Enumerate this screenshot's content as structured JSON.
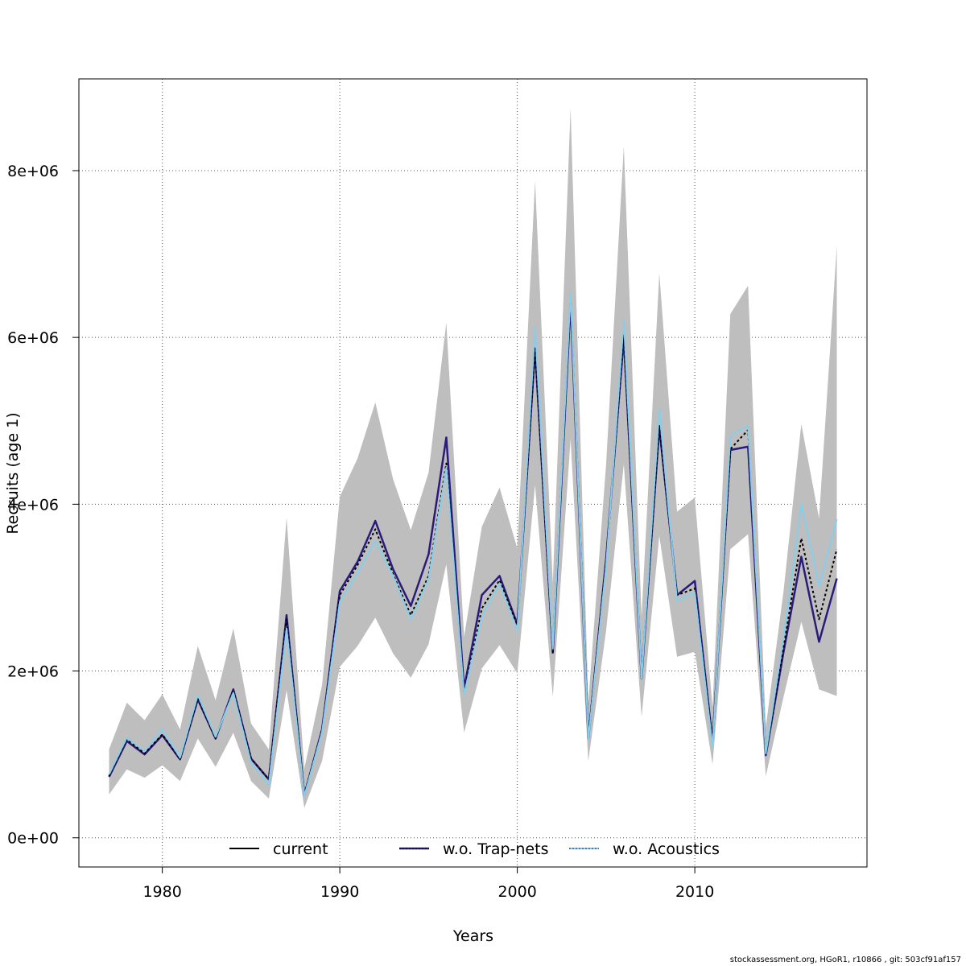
{
  "chart_data": {
    "type": "line",
    "title": "",
    "xlabel": "Years",
    "ylabel": "Recruits (age 1)",
    "xlim": [
      1975.3,
      2019.7
    ],
    "ylim": [
      -350000,
      9100000
    ],
    "x_ticks": [
      1980,
      1990,
      2000,
      2010
    ],
    "x_tick_labels": [
      "1980",
      "1990",
      "2000",
      "2010"
    ],
    "y_ticks": [
      0,
      2000000,
      4000000,
      6000000,
      8000000
    ],
    "y_tick_labels": [
      "0e+00",
      "2e+06",
      "4e+06",
      "6e+06",
      "8e+06"
    ],
    "grid": true,
    "legend_position": "bottom",
    "x": [
      1977,
      1978,
      1979,
      1980,
      1981,
      1982,
      1983,
      1984,
      1985,
      1986,
      1987,
      1988,
      1989,
      1990,
      1991,
      1992,
      1993,
      1994,
      1995,
      1996,
      1997,
      1998,
      1999,
      2000,
      2001,
      2002,
      2003,
      2004,
      2005,
      2006,
      2007,
      2008,
      2009,
      2010,
      2011,
      2012,
      2013,
      2014,
      2015,
      2016,
      2017,
      2018
    ],
    "band": {
      "color": "#bebebe",
      "lower": [
        520000,
        820000,
        720000,
        870000,
        680000,
        1190000,
        850000,
        1260000,
        680000,
        470000,
        1770000,
        360000,
        920000,
        2050000,
        2300000,
        2640000,
        2210000,
        1920000,
        2320000,
        3280000,
        1260000,
        2030000,
        2310000,
        1970000,
        4230000,
        1690000,
        4780000,
        920000,
        2480000,
        4480000,
        1450000,
        3620000,
        2170000,
        2230000,
        880000,
        3460000,
        3640000,
        740000,
        1690000,
        2590000,
        1780000,
        1700000
      ],
      "upper": [
        1060000,
        1620000,
        1410000,
        1720000,
        1300000,
        2300000,
        1650000,
        2510000,
        1370000,
        1060000,
        3840000,
        830000,
        1830000,
        4090000,
        4550000,
        5220000,
        4300000,
        3690000,
        4380000,
        6180000,
        2410000,
        3730000,
        4200000,
        3470000,
        7880000,
        3050000,
        8750000,
        1630000,
        4470000,
        8290000,
        2650000,
        6770000,
        3910000,
        4080000,
        1560000,
        6280000,
        6620000,
        1330000,
        2960000,
        4960000,
        3830000,
        7100000
      ]
    },
    "series": [
      {
        "name": "current",
        "color": "#000000",
        "style": "solid",
        "values": [
          740000,
          1180000,
          1010000,
          1240000,
          940000,
          1670000,
          1190000,
          1770000,
          950000,
          700000,
          2620000,
          520000,
          1290000,
          2910000,
          3270000,
          3700000,
          3160000,
          2670000,
          3140000,
          4490000,
          1730000,
          2750000,
          3090000,
          2550000,
          5870000,
          2230000,
          6490000,
          1220000,
          3300000,
          6040000,
          1920000,
          4940000,
          2910000,
          2990000,
          1150000,
          4660000,
          4890000,
          1000000,
          2280000,
          3590000,
          2620000,
          3460000
        ]
      },
      {
        "name": "w.o. Trap-nets",
        "color": "#2b1a7a",
        "style": "solid",
        "values": [
          730000,
          1160000,
          1000000,
          1230000,
          940000,
          1660000,
          1190000,
          1780000,
          950000,
          700000,
          2670000,
          510000,
          1300000,
          2960000,
          3310000,
          3800000,
          3220000,
          2780000,
          3400000,
          4800000,
          1790000,
          2910000,
          3140000,
          2560000,
          5860000,
          2220000,
          6420000,
          1190000,
          3340000,
          5990000,
          1910000,
          4920000,
          2910000,
          3080000,
          1150000,
          4650000,
          4690000,
          990000,
          2230000,
          3370000,
          2350000,
          3110000
        ]
      },
      {
        "name": "w.o. Acoustics",
        "color": "#87ceeb",
        "style": "dotted",
        "values": [
          760000,
          1200000,
          1040000,
          1300000,
          960000,
          1710000,
          1210000,
          1740000,
          900000,
          640000,
          2510000,
          500000,
          1270000,
          2830000,
          3180000,
          3560000,
          3140000,
          2620000,
          3100000,
          4440000,
          1720000,
          2650000,
          3050000,
          2480000,
          6130000,
          2270000,
          6530000,
          1180000,
          3250000,
          6210000,
          1910000,
          5140000,
          2840000,
          2940000,
          1090000,
          4820000,
          4940000,
          1010000,
          2410000,
          4000000,
          3020000,
          3820000
        ]
      }
    ]
  },
  "footer": "stockassessment.org, HGoR1, r10866 , git: 503cf91af157"
}
